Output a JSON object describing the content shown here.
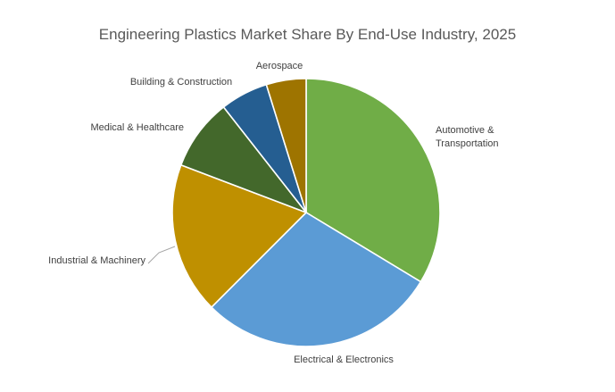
{
  "chart_data": {
    "type": "pie",
    "title": "Engineering Plastics Market Share By End-Use Industry, 2025",
    "slices": [
      {
        "label": [
          "Automotive &",
          "Transportation"
        ],
        "value": 35,
        "color": "#70ad47"
      },
      {
        "label": [
          "Electrical & Electronics"
        ],
        "value": 30,
        "color": "#5b9bd5"
      },
      {
        "label": [
          "Industrial & Machinery"
        ],
        "value": 19,
        "color": "#bf9000"
      },
      {
        "label": [
          "Medical & Healthcare"
        ],
        "value": 9,
        "color": "#43682b"
      },
      {
        "label": [
          "Building & Construction"
        ],
        "value": 6,
        "color": "#255e91"
      },
      {
        "label": [
          "Aerospace"
        ],
        "value": 5,
        "color": "#9e7400"
      }
    ]
  }
}
